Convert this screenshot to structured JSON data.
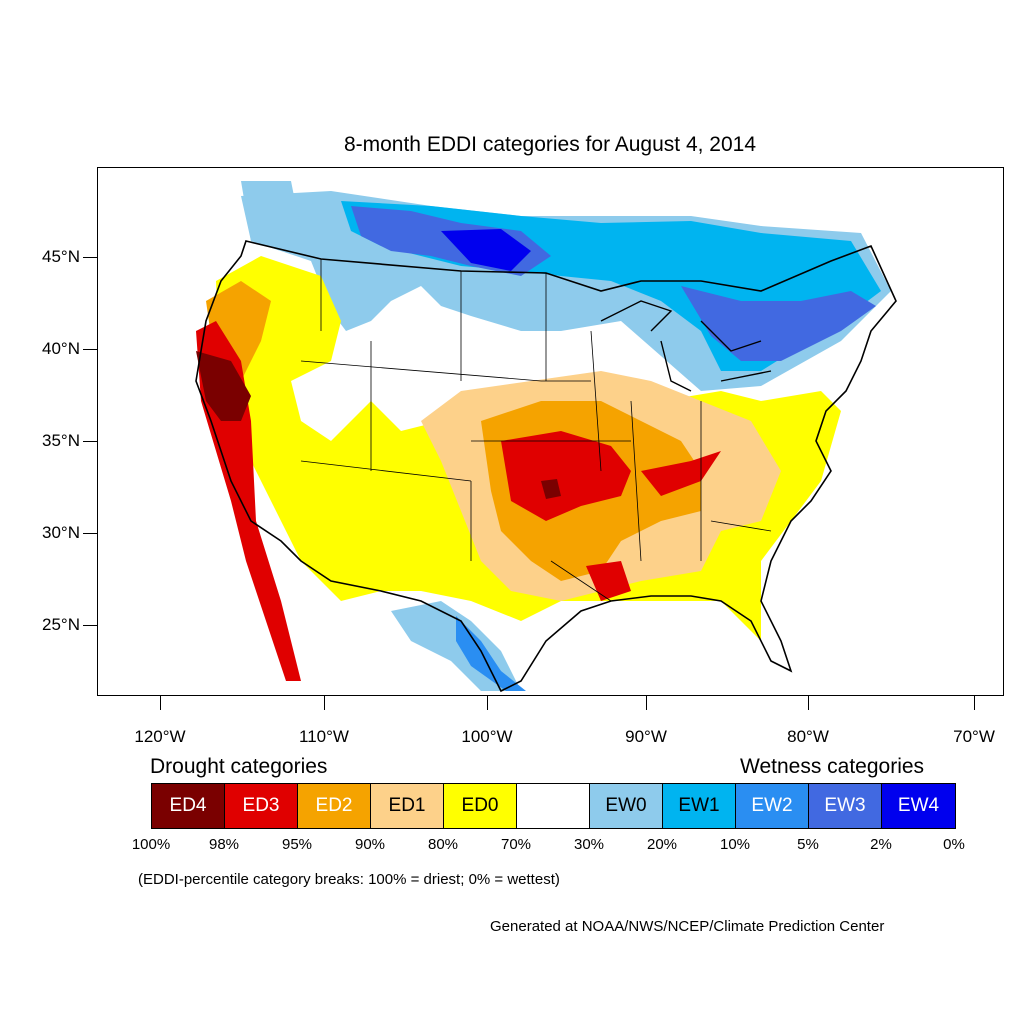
{
  "title": "8-month EDDI categories for August 4, 2014",
  "y_axis_labels": [
    "45°N",
    "40°N",
    "35°N",
    "30°N",
    "25°N"
  ],
  "x_axis_labels": [
    "120°W",
    "110°W",
    "100°W",
    "90°W",
    "80°W",
    "70°W"
  ],
  "legend": {
    "drought_heading": "Drought categories",
    "wetness_heading": "Wetness categories",
    "categories": [
      {
        "label": "ED4",
        "color": "#7a0000",
        "text_color": "#ffffff"
      },
      {
        "label": "ED3",
        "color": "#e00000",
        "text_color": "#ffffff"
      },
      {
        "label": "ED2",
        "color": "#f5a300",
        "text_color": "#ffffff"
      },
      {
        "label": "ED1",
        "color": "#fdd18a",
        "text_color": "#000000"
      },
      {
        "label": "ED0",
        "color": "#ffff00",
        "text_color": "#000000"
      },
      {
        "label": "",
        "color": "#ffffff",
        "text_color": "#000000"
      },
      {
        "label": "EW0",
        "color": "#8ecbec",
        "text_color": "#000000"
      },
      {
        "label": "EW1",
        "color": "#00b4f0",
        "text_color": "#000000"
      },
      {
        "label": "EW2",
        "color": "#2a8ef2",
        "text_color": "#ffffff"
      },
      {
        "label": "EW3",
        "color": "#4169e1",
        "text_color": "#ffffff"
      },
      {
        "label": "EW4",
        "color": "#0000ee",
        "text_color": "#ffffff"
      }
    ],
    "percentiles": [
      "100%",
      "98%",
      "95%",
      "90%",
      "80%",
      "70%",
      "30%",
      "20%",
      "10%",
      "5%",
      "2%",
      "0%"
    ]
  },
  "note": "(EDDI-percentile category breaks: 100% = driest; 0% = wettest)",
  "credit": "Generated at NOAA/NWS/NCEP/Climate Prediction Center"
}
